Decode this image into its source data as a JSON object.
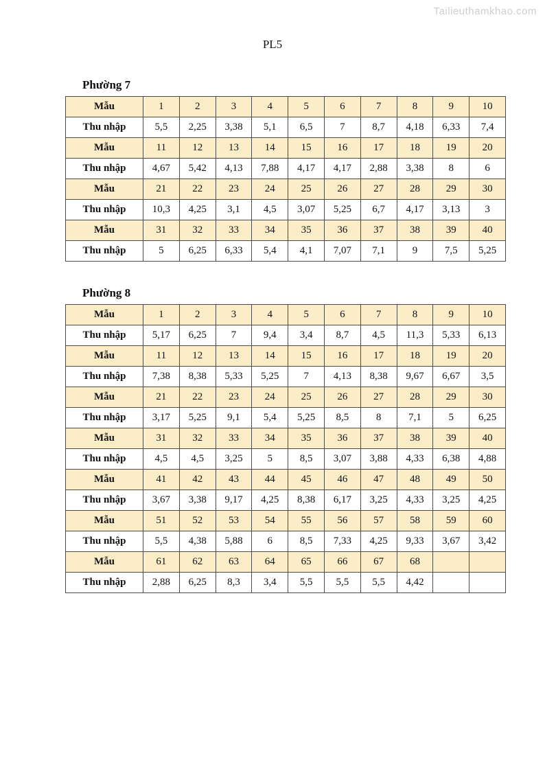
{
  "page": {
    "watermark": "Tailieuthamkhao.com",
    "title": "PL5"
  },
  "labels": {
    "sample": "Mẫu",
    "income": "Thu nhập"
  },
  "colors": {
    "sample_row_bg": "#FCEDC9",
    "income_row_bg": "#FFFFFF",
    "border": "#4A4A4A",
    "watermark_text": "#CFCFCF"
  },
  "tables": [
    {
      "heading": "Phường 7",
      "rows": [
        {
          "type": "sample",
          "label": "Mẫu",
          "cells": [
            "1",
            "2",
            "3",
            "4",
            "5",
            "6",
            "7",
            "8",
            "9",
            "10"
          ]
        },
        {
          "type": "income",
          "label": "Thu nhập",
          "cells": [
            "5,5",
            "2,25",
            "3,38",
            "5,1",
            "6,5",
            "7",
            "8,7",
            "4,18",
            "6,33",
            "7,4"
          ]
        },
        {
          "type": "sample",
          "label": "Mẫu",
          "cells": [
            "11",
            "12",
            "13",
            "14",
            "15",
            "16",
            "17",
            "18",
            "19",
            "20"
          ]
        },
        {
          "type": "income",
          "label": "Thu nhập",
          "cells": [
            "4,67",
            "5,42",
            "4,13",
            "7,88",
            "4,17",
            "4,17",
            "2,88",
            "3,38",
            "8",
            "6"
          ]
        },
        {
          "type": "sample",
          "label": "Mẫu",
          "cells": [
            "21",
            "22",
            "23",
            "24",
            "25",
            "26",
            "27",
            "28",
            "29",
            "30"
          ]
        },
        {
          "type": "income",
          "label": "Thu nhập",
          "cells": [
            "10,3",
            "4,25",
            "3,1",
            "4,5",
            "3,07",
            "5,25",
            "6,7",
            "4,17",
            "3,13",
            "3"
          ]
        },
        {
          "type": "sample",
          "label": "Mẫu",
          "cells": [
            "31",
            "32",
            "33",
            "34",
            "35",
            "36",
            "37",
            "38",
            "39",
            "40"
          ]
        },
        {
          "type": "income",
          "label": "Thu nhập",
          "cells": [
            "5",
            "6,25",
            "6,33",
            "5,4",
            "4,1",
            "7,07",
            "7,1",
            "9",
            "7,5",
            "5,25"
          ]
        }
      ]
    },
    {
      "heading": "Phường 8",
      "rows": [
        {
          "type": "sample",
          "label": "Mẫu",
          "cells": [
            "1",
            "2",
            "3",
            "4",
            "5",
            "6",
            "7",
            "8",
            "9",
            "10"
          ]
        },
        {
          "type": "income",
          "label": "Thu nhập",
          "cells": [
            "5,17",
            "6,25",
            "7",
            "9,4",
            "3,4",
            "8,7",
            "4,5",
            "11,3",
            "5,33",
            "6,13"
          ]
        },
        {
          "type": "sample",
          "label": "Mẫu",
          "cells": [
            "11",
            "12",
            "13",
            "14",
            "15",
            "16",
            "17",
            "18",
            "19",
            "20"
          ]
        },
        {
          "type": "income",
          "label": "Thu nhập",
          "cells": [
            "7,38",
            "8,38",
            "5,33",
            "5,25",
            "7",
            "4,13",
            "8,38",
            "9,67",
            "6,67",
            "3,5"
          ]
        },
        {
          "type": "sample",
          "label": "Mẫu",
          "cells": [
            "21",
            "22",
            "23",
            "24",
            "25",
            "26",
            "27",
            "28",
            "29",
            "30"
          ]
        },
        {
          "type": "income",
          "label": "Thu nhập",
          "cells": [
            "3,17",
            "5,25",
            "9,1",
            "5,4",
            "5,25",
            "8,5",
            "8",
            "7,1",
            "5",
            "6,25"
          ]
        },
        {
          "type": "sample",
          "label": "Mẫu",
          "cells": [
            "31",
            "32",
            "33",
            "34",
            "35",
            "36",
            "37",
            "38",
            "39",
            "40"
          ]
        },
        {
          "type": "income",
          "label": "Thu nhập",
          "cells": [
            "4,5",
            "4,5",
            "3,25",
            "5",
            "8,5",
            "3,07",
            "3,88",
            "4,33",
            "6,38",
            "4,88"
          ]
        },
        {
          "type": "sample",
          "label": "Mẫu",
          "cells": [
            "41",
            "42",
            "43",
            "44",
            "45",
            "46",
            "47",
            "48",
            "49",
            "50"
          ]
        },
        {
          "type": "income",
          "label": "Thu nhập",
          "cells": [
            "3,67",
            "3,38",
            "9,17",
            "4,25",
            "8,38",
            "6,17",
            "3,25",
            "4,33",
            "3,25",
            "4,25"
          ]
        },
        {
          "type": "sample",
          "label": "Mẫu",
          "cells": [
            "51",
            "52",
            "53",
            "54",
            "55",
            "56",
            "57",
            "58",
            "59",
            "60"
          ]
        },
        {
          "type": "income",
          "label": "Thu nhập",
          "cells": [
            "5,5",
            "4,38",
            "5,88",
            "6",
            "8,5",
            "7,33",
            "4,25",
            "9,33",
            "3,67",
            "3,42"
          ]
        },
        {
          "type": "sample",
          "label": "Mẫu",
          "cells": [
            "61",
            "62",
            "63",
            "64",
            "65",
            "66",
            "67",
            "68",
            "",
            ""
          ]
        },
        {
          "type": "income",
          "label": "Thu nhập",
          "cells": [
            "2,88",
            "6,25",
            "8,3",
            "3,4",
            "5,5",
            "5,5",
            "5,5",
            "4,42",
            "",
            ""
          ]
        }
      ]
    }
  ]
}
